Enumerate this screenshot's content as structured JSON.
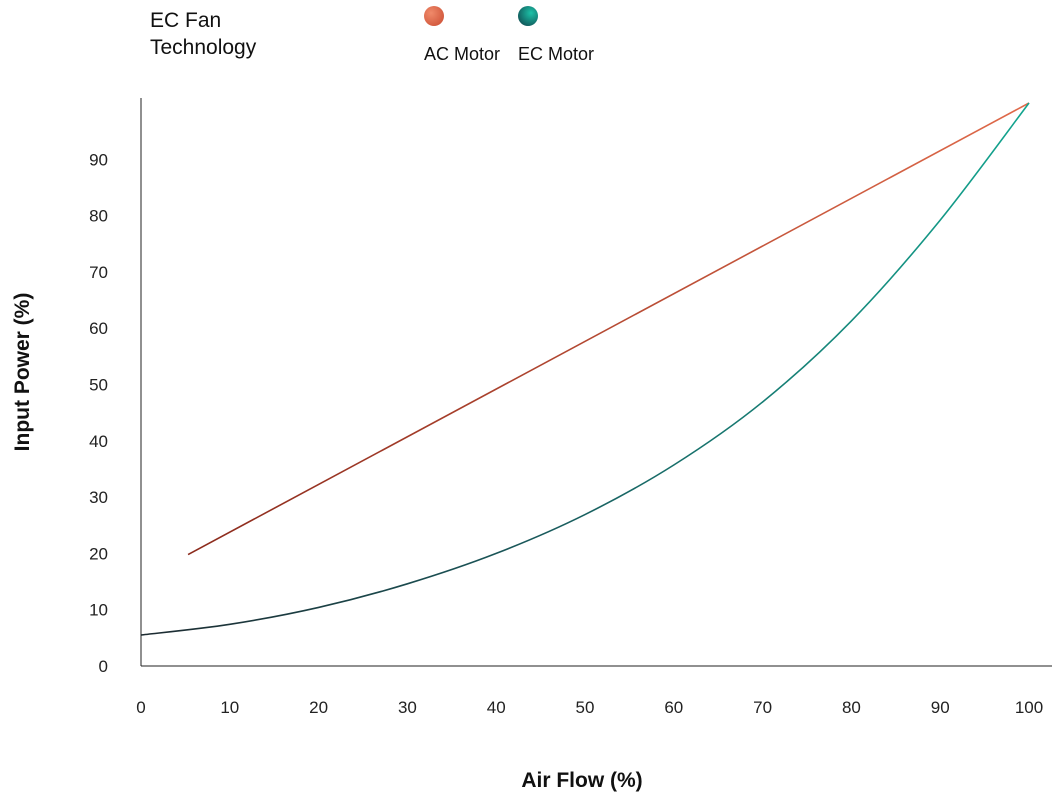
{
  "chart_data": {
    "type": "line",
    "title": "EC Fan Technology",
    "xlabel": "Air Flow (%)",
    "ylabel": "Input Power (%)",
    "xlim": [
      0,
      100
    ],
    "ylim": [
      0,
      100
    ],
    "x_ticks": [
      0,
      10,
      20,
      30,
      40,
      50,
      60,
      70,
      80,
      90,
      100
    ],
    "y_ticks": [
      0,
      10,
      20,
      30,
      40,
      50,
      60,
      70,
      80,
      90
    ],
    "grid": false,
    "legend_position": "top",
    "series": [
      {
        "name": "AC Motor",
        "color_start": "#8b2a1c",
        "color_end": "#e06a4a",
        "x": [
          5.3,
          100
        ],
        "y": [
          19.8,
          100
        ]
      },
      {
        "name": "EC Motor",
        "color_start": "#1c2a30",
        "color_end": "#12a58f",
        "x": [
          0,
          10,
          20,
          30,
          40,
          50,
          60,
          70,
          80,
          90,
          100
        ],
        "y": [
          5.5,
          7.4,
          10.4,
          14.6,
          20.0,
          26.9,
          35.7,
          46.9,
          61.3,
          79.2,
          100
        ]
      }
    ]
  }
}
